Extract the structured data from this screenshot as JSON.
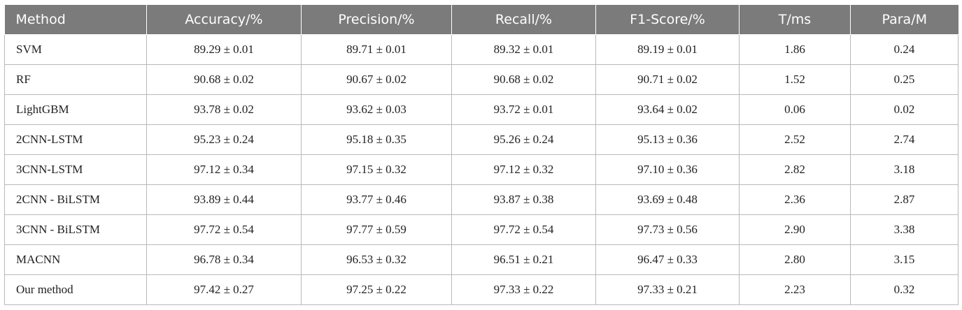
{
  "table": {
    "headers": [
      "Method",
      "Accuracy/%",
      "Precision/%",
      "Recall/%",
      "F1-Score/%",
      "T/ms",
      "Para/M"
    ],
    "rows": [
      [
        "SVM",
        "89.29 ± 0.01",
        "89.71 ± 0.01",
        "89.32 ± 0.01",
        "89.19 ± 0.01",
        "1.86",
        "0.24"
      ],
      [
        "RF",
        "90.68 ± 0.02",
        "90.67 ± 0.02",
        "90.68 ± 0.02",
        "90.71 ± 0.02",
        "1.52",
        "0.25"
      ],
      [
        "LightGBM",
        "93.78 ± 0.02",
        "93.62 ± 0.03",
        "93.72 ± 0.01",
        "93.64 ± 0.02",
        "0.06",
        "0.02"
      ],
      [
        "2CNN-LSTM",
        "95.23 ± 0.24",
        "95.18 ± 0.35",
        "95.26 ± 0.24",
        "95.13 ± 0.36",
        "2.52",
        "2.74"
      ],
      [
        "3CNN-LSTM",
        "97.12 ± 0.34",
        "97.15 ± 0.32",
        "97.12 ± 0.32",
        "97.10 ± 0.36",
        "2.82",
        "3.18"
      ],
      [
        "2CNN - BiLSTM",
        "93.89 ± 0.44",
        "93.77 ± 0.46",
        "93.87 ± 0.38",
        "93.69 ± 0.48",
        "2.36",
        "2.87"
      ],
      [
        "3CNN - BiLSTM",
        "97.72 ± 0.54",
        "97.77 ± 0.59",
        "97.72 ± 0.54",
        "97.73 ± 0.56",
        "2.90",
        "3.38"
      ],
      [
        "MACNN",
        "96.78 ± 0.34",
        "96.53 ± 0.32",
        "96.51 ± 0.21",
        "96.47 ± 0.33",
        "2.80",
        "3.15"
      ],
      [
        "Our method",
        "97.42 ± 0.27",
        "97.25 ± 0.22",
        "97.33 ± 0.22",
        "97.33 ± 0.21",
        "2.23",
        "0.32"
      ]
    ]
  }
}
